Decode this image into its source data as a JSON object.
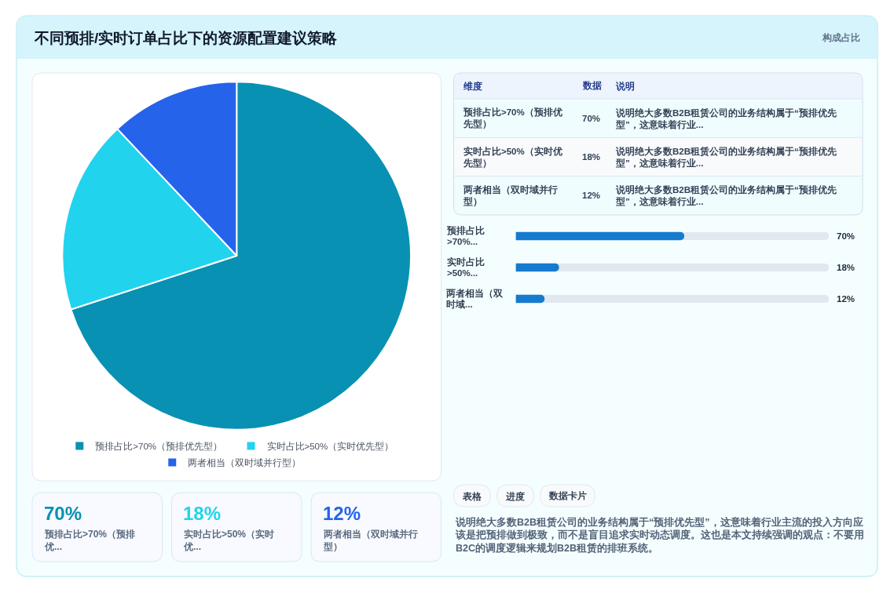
{
  "chart_data": [
    {
      "type": "other",
      "title": "不同预排/实时订单占比下的资源配置建议策略",
      "subtitle": "构成占比"
    },
    {
      "type": "pie",
      "categories": [
        "预排占比>70%（预排优先型）",
        "实时占比>50%（实时优先型）",
        "两者相当（双时域并行型）"
      ],
      "values": [
        70,
        18,
        12
      ],
      "colors": [
        "#0891b2",
        "#22d3ee",
        "#2563eb"
      ],
      "legend": "bottom"
    },
    {
      "type": "other",
      "categories": [
        "维度",
        "数据",
        "说明"
      ],
      "y_categories": [
        "预排占比>70%（预排优先型）",
        "实时占比>50%（实时优先型）",
        "两者相当（双时域并行型）"
      ],
      "cell_labels": [
        [
          "70%",
          "说明绝大多数B2B租赁公司的业务结构属于“预排优先型”，这意味着行业..."
        ],
        [
          "18%",
          "说明绝大多数B2B租赁公司的业务结构属于“预排优先型”，这意味着行业..."
        ],
        [
          "12%",
          "说明绝大多数B2B租赁公司的业务结构属于“预排优先型”，这意味着行业..."
        ]
      ]
    },
    {
      "type": "bar",
      "orientation": "horizontal",
      "categories": [
        "预排占比>70%...",
        "实时占比>50%...",
        "两者相当（双时域..."
      ],
      "values": [
        70,
        18,
        12
      ],
      "value_labels": [
        "70%",
        "18%",
        "12%"
      ],
      "color": "#167ace",
      "xlim": [
        0,
        130
      ],
      "tick_labels": "y"
    },
    {
      "type": "other",
      "categories": [
        "预排占比>70%（预排优...",
        "实时占比>50%（实时优...",
        "两者相当（双时域并行型）"
      ],
      "value_labels": [
        "70%",
        "18%",
        "12%"
      ]
    },
    {
      "type": "other",
      "categories": [
        "表格",
        "进度",
        "数据卡片"
      ],
      "annotations": [
        "说明绝大多数B2B租赁公司的业务结构属于“预排优先型”，这意味着行业主流的投入方向应该是把预排做到极致，而不是盲目追求实时动态调度。这也是本文持续强调的观点：不要用B2C的调度逻辑来规划B2B租赁的排班系统。"
      ]
    }
  ]
}
